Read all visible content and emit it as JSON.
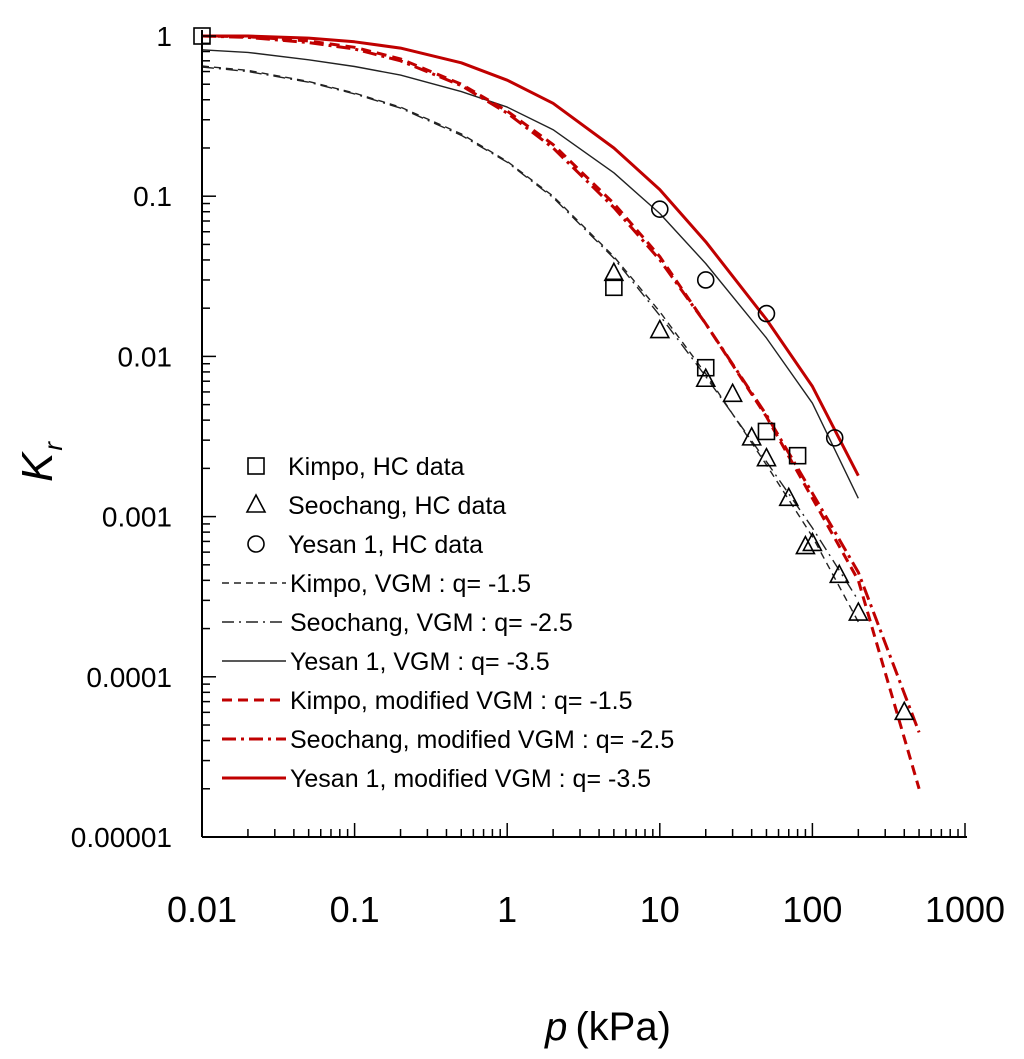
{
  "chart_data": {
    "type": "scatter",
    "xscale": "log",
    "yscale": "log",
    "xlim": [
      0.01,
      1000
    ],
    "ylim": [
      1e-05,
      1
    ],
    "xlabel": "p",
    "xlabel_unit": "(kPa)",
    "ylabel": "K",
    "ylabel_sub": "r",
    "x_ticks": [
      "0.01",
      "0.1",
      "1",
      "10",
      "100",
      "1000"
    ],
    "y_ticks": [
      "1",
      "0.1",
      "0.01",
      "0.001",
      "0.0001",
      "0.00001"
    ],
    "legend_position": "bottom-left",
    "data_series": [
      {
        "name": "Kimpo, HC data",
        "marker": "square",
        "points": [
          [
            0.01,
            1.0
          ],
          [
            5,
            0.027
          ],
          [
            20,
            0.0085
          ],
          [
            50,
            0.0034
          ],
          [
            80,
            0.0024
          ]
        ]
      },
      {
        "name": "Seochang, HC data",
        "marker": "triangle",
        "points": [
          [
            5,
            0.033
          ],
          [
            10,
            0.0145
          ],
          [
            20,
            0.0072
          ],
          [
            30,
            0.0058
          ],
          [
            40,
            0.0031
          ],
          [
            50,
            0.0023
          ],
          [
            70,
            0.0013
          ],
          [
            90,
            0.00065
          ],
          [
            100,
            0.00068
          ],
          [
            150,
            0.00043
          ],
          [
            200,
            0.00025
          ],
          [
            400,
            6e-05
          ]
        ]
      },
      {
        "name": "Yesan 1, HC data",
        "marker": "circle",
        "points": [
          [
            10,
            0.083
          ],
          [
            20,
            0.03
          ],
          [
            50,
            0.0185
          ],
          [
            140,
            0.0031
          ]
        ]
      }
    ],
    "model_series": [
      {
        "name": "Kimpo, VGM : q= -1.5",
        "color": "#222222",
        "style": "dash",
        "weight": "thin",
        "points": [
          [
            0.01,
            0.65
          ],
          [
            0.02,
            0.61
          ],
          [
            0.05,
            0.52
          ],
          [
            0.1,
            0.44
          ],
          [
            0.2,
            0.36
          ],
          [
            0.5,
            0.245
          ],
          [
            1,
            0.165
          ],
          [
            2,
            0.1
          ],
          [
            5,
            0.042
          ],
          [
            10,
            0.019
          ],
          [
            20,
            0.0078
          ],
          [
            50,
            0.0021
          ],
          [
            100,
            0.00075
          ],
          [
            200,
            0.00022
          ]
        ]
      },
      {
        "name": "Seochang, VGM : q= -2.5",
        "color": "#222222",
        "style": "dashdot",
        "weight": "thin",
        "points": [
          [
            0.01,
            0.64
          ],
          [
            0.02,
            0.6
          ],
          [
            0.05,
            0.515
          ],
          [
            0.1,
            0.435
          ],
          [
            0.2,
            0.355
          ],
          [
            0.5,
            0.24
          ],
          [
            1,
            0.163
          ],
          [
            2,
            0.098
          ],
          [
            5,
            0.041
          ],
          [
            10,
            0.018
          ],
          [
            20,
            0.0075
          ],
          [
            50,
            0.0022
          ],
          [
            100,
            0.00085
          ],
          [
            200,
            0.0003
          ]
        ]
      },
      {
        "name": "Yesan 1, VGM : q= -3.5",
        "color": "#222222",
        "style": "solid",
        "weight": "thin",
        "points": [
          [
            0.01,
            0.82
          ],
          [
            0.02,
            0.79
          ],
          [
            0.05,
            0.71
          ],
          [
            0.1,
            0.645
          ],
          [
            0.2,
            0.57
          ],
          [
            0.5,
            0.45
          ],
          [
            1,
            0.36
          ],
          [
            2,
            0.26
          ],
          [
            5,
            0.14
          ],
          [
            10,
            0.078
          ],
          [
            20,
            0.038
          ],
          [
            50,
            0.013
          ],
          [
            100,
            0.0051
          ],
          [
            200,
            0.0013
          ]
        ]
      },
      {
        "name": "Kimpo, modified VGM : q= -1.5",
        "color": "#c00000",
        "style": "dash",
        "weight": "thick",
        "points": [
          [
            0.01,
            1.0
          ],
          [
            0.02,
            0.99
          ],
          [
            0.05,
            0.93
          ],
          [
            0.1,
            0.85
          ],
          [
            0.2,
            0.72
          ],
          [
            0.5,
            0.5
          ],
          [
            1,
            0.34
          ],
          [
            2,
            0.21
          ],
          [
            5,
            0.09
          ],
          [
            10,
            0.042
          ],
          [
            20,
            0.016
          ],
          [
            50,
            0.0042
          ],
          [
            100,
            0.0013
          ],
          [
            200,
            0.0004
          ],
          [
            500,
            2e-05
          ]
        ]
      },
      {
        "name": "Seochang, modified VGM : q= -2.5",
        "color": "#c00000",
        "style": "dashdot",
        "weight": "thick",
        "points": [
          [
            0.01,
            1.0
          ],
          [
            0.02,
            0.98
          ],
          [
            0.05,
            0.91
          ],
          [
            0.1,
            0.83
          ],
          [
            0.2,
            0.7
          ],
          [
            0.5,
            0.49
          ],
          [
            1,
            0.33
          ],
          [
            2,
            0.2
          ],
          [
            5,
            0.085
          ],
          [
            10,
            0.04
          ],
          [
            20,
            0.016
          ],
          [
            50,
            0.0043
          ],
          [
            100,
            0.0014
          ],
          [
            200,
            0.00045
          ],
          [
            500,
            4.5e-05
          ]
        ]
      },
      {
        "name": "Yesan 1, modified VGM : q= -3.5",
        "color": "#c00000",
        "style": "solid",
        "weight": "thick",
        "points": [
          [
            0.01,
            1.0
          ],
          [
            0.02,
            1.0
          ],
          [
            0.05,
            0.97
          ],
          [
            0.1,
            0.92
          ],
          [
            0.2,
            0.84
          ],
          [
            0.5,
            0.68
          ],
          [
            1,
            0.53
          ],
          [
            2,
            0.38
          ],
          [
            5,
            0.2
          ],
          [
            10,
            0.11
          ],
          [
            20,
            0.052
          ],
          [
            50,
            0.017
          ],
          [
            100,
            0.0065
          ],
          [
            200,
            0.0018
          ]
        ]
      }
    ]
  }
}
